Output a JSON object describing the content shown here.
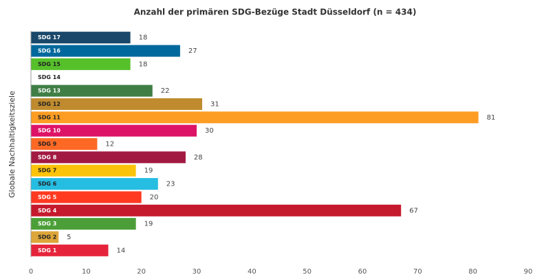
{
  "chart_data": {
    "type": "barh",
    "title": "Anzahl der primären SDG-Bezüge Stadt Düsseldorf (n = 434)",
    "y_label": "Globale Nachhaltigkeitsziele",
    "categories": [
      "SDG 17",
      "SDG 16",
      "SDG 15",
      "SDG 14",
      "SDG 13",
      "SDG 12",
      "SDG 11",
      "SDG 10",
      "SDG 9",
      "SDG 8",
      "SDG 7",
      "SDG 6",
      "SDG 5",
      "SDG 4",
      "SDG 3",
      "SDG 2",
      "SDG 1"
    ],
    "values": [
      18,
      27,
      18,
      null,
      22,
      31,
      81,
      30,
      12,
      28,
      19,
      23,
      20,
      67,
      19,
      5,
      14
    ],
    "colors": [
      "#19486a",
      "#00689d",
      "#56c02b",
      "#0a97d9",
      "#3f7e44",
      "#bf8b2e",
      "#fd9d24",
      "#dd1367",
      "#fd6925",
      "#a21942",
      "#fcc30b",
      "#26bde2",
      "#ff3a21",
      "#c5192d",
      "#4c9f38",
      "#dda63a",
      "#e5243b"
    ],
    "xlim": [
      0,
      90
    ],
    "xticks": [
      0,
      10,
      20,
      30,
      40,
      50,
      60,
      70,
      80,
      90
    ],
    "grid": false
  }
}
